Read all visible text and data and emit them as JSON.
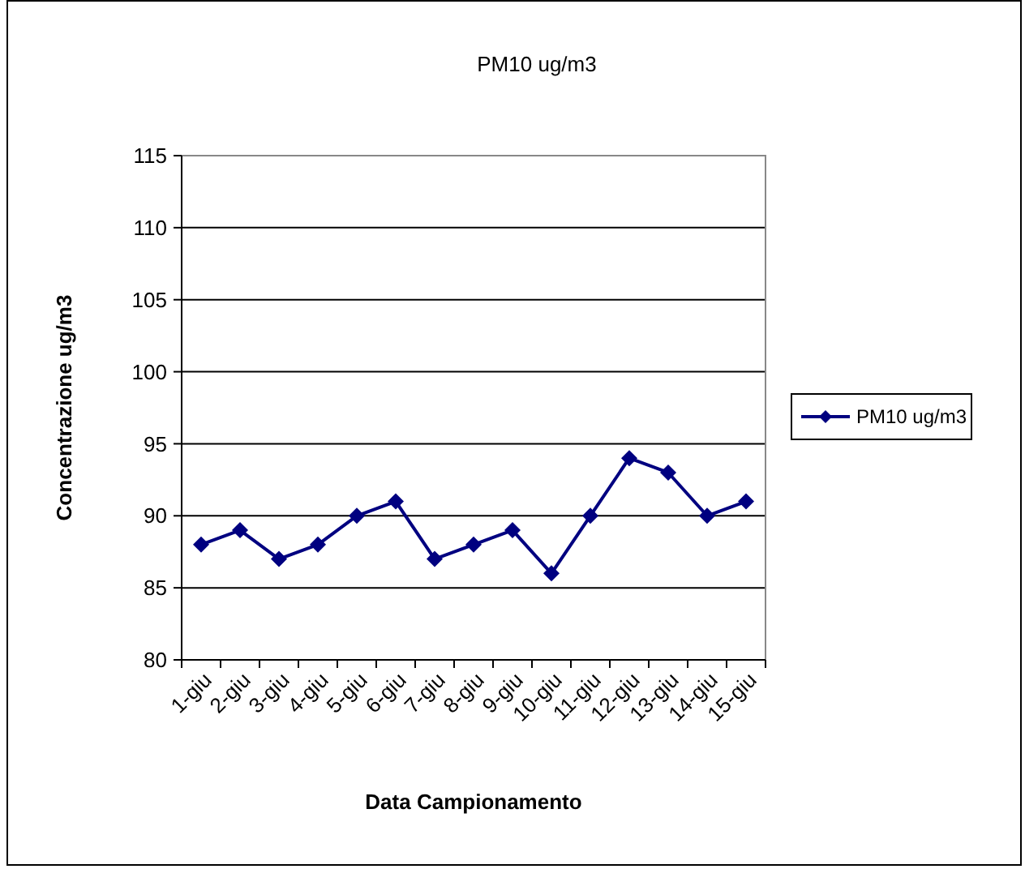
{
  "chart_data": {
    "type": "line",
    "title": "PM10 ug/m3",
    "xlabel": "Data Campionamento",
    "ylabel": "Concentrazione ug/m3",
    "categories": [
      "1-giu",
      "2-giu",
      "3-giu",
      "4-giu",
      "5-giu",
      "6-giu",
      "7-giu",
      "8-giu",
      "9-giu",
      "10-giu",
      "11-giu",
      "12-giu",
      "13-giu",
      "14-giu",
      "15-giu"
    ],
    "series": [
      {
        "name": "PM10 ug/m3",
        "color": "#000080",
        "values": [
          88,
          89,
          87,
          88,
          90,
          91,
          87,
          88,
          89,
          86,
          90,
          94,
          93,
          90,
          91
        ]
      }
    ],
    "ylim": [
      80,
      115
    ],
    "yticks": [
      80,
      85,
      90,
      95,
      100,
      105,
      110,
      115
    ],
    "grid": "y",
    "legend": "right",
    "marker": "diamond",
    "line_style": "solid"
  }
}
